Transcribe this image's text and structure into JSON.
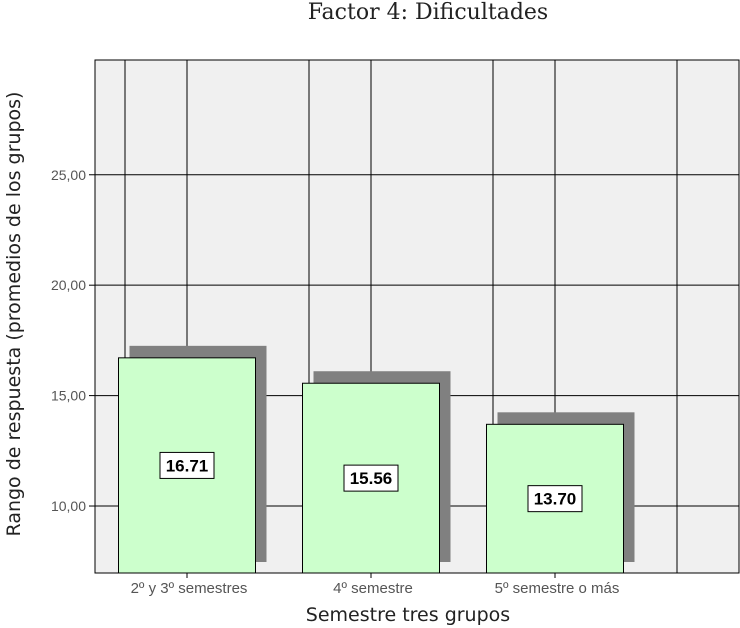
{
  "chart_data": {
    "type": "bar",
    "title": "Factor 4: Dificultades",
    "xlabel": "Semestre tres grupos",
    "ylabel": "Rango de respuesta (promedios de los grupos)",
    "categories": [
      "2º y 3º semestres",
      "4º semestre",
      "5º semestre o más"
    ],
    "values": [
      16.71,
      15.56,
      13.7
    ],
    "value_labels": [
      "16.71",
      "15.56",
      "13.70"
    ],
    "ylim": [
      6.967,
      30.197
    ],
    "yticks": [
      10,
      15,
      20,
      25
    ],
    "ytick_labels": [
      "10,00",
      "15,00",
      "20,00",
      "25,00"
    ],
    "grid": true,
    "colors": {
      "bar": "#ccffcc",
      "shadow": "#808080",
      "plot_bg": "#f0f0f0",
      "grid": "#000000"
    }
  }
}
